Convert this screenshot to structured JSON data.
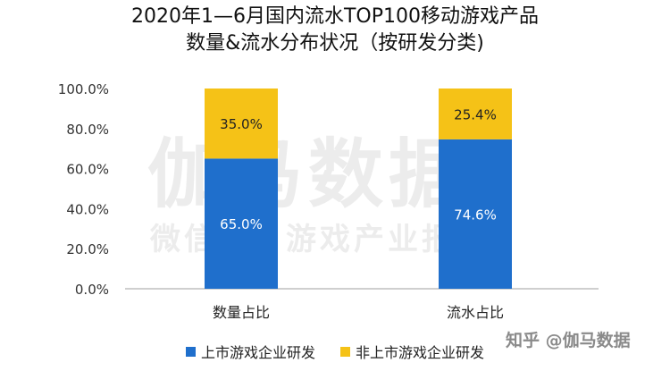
{
  "title": {
    "line1": "2020年1—6月国内流水TOP100移动游戏产品",
    "line2": "数量&流水分布状况（按研发分类)"
  },
  "watermark": {
    "main": "伽马数据",
    "sub": "微信号：游戏产业报告",
    "zhihu": "知乎 @伽马数据"
  },
  "colors": {
    "listed": "#1f6fcc",
    "non_listed": "#f5c217",
    "axis": "#bfbfbf",
    "label_light": "#ffffff",
    "label_dark": "#222222"
  },
  "chart_data": {
    "type": "bar",
    "stacked": true,
    "categories": [
      "数量占比",
      "流水占比"
    ],
    "series": [
      {
        "name": "上市游戏企业研发",
        "values": [
          65.0,
          74.6
        ],
        "labels": [
          "65.0%",
          "74.6%"
        ]
      },
      {
        "name": "非上市游戏企业研发",
        "values": [
          35.0,
          25.4
        ],
        "labels": [
          "35.0%",
          "25.4%"
        ]
      }
    ],
    "ylim": [
      0,
      100
    ],
    "yticks": [
      "0.0%",
      "20.0%",
      "40.0%",
      "60.0%",
      "80.0%",
      "100.0%"
    ],
    "grid": false,
    "legend_position": "bottom"
  }
}
